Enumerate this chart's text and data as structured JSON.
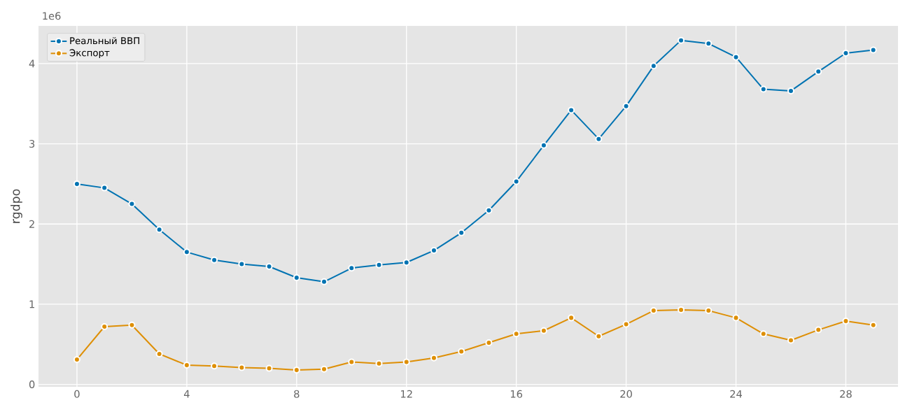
{
  "chart_data": {
    "type": "line",
    "ylabel": "rgdpo",
    "annotations": [
      "1e6"
    ],
    "x": [
      0,
      1,
      2,
      3,
      4,
      5,
      6,
      7,
      8,
      9,
      10,
      11,
      12,
      13,
      14,
      15,
      16,
      17,
      18,
      19,
      20,
      21,
      22,
      23,
      24,
      25,
      26,
      27,
      28,
      29
    ],
    "series": [
      {
        "name": "Реальный ВВП",
        "color": "#0173b2",
        "values": [
          2.5,
          2.45,
          2.25,
          1.93,
          1.65,
          1.55,
          1.5,
          1.47,
          1.33,
          1.28,
          1.45,
          1.49,
          1.52,
          1.67,
          1.89,
          2.17,
          2.53,
          2.98,
          3.42,
          3.06,
          3.47,
          3.97,
          4.29,
          4.25,
          4.08,
          3.68,
          3.66,
          3.9,
          4.13,
          4.17
        ]
      },
      {
        "name": "Экспорт",
        "color": "#de8f05",
        "values": [
          0.31,
          0.72,
          0.74,
          0.38,
          0.24,
          0.23,
          0.21,
          0.2,
          0.18,
          0.19,
          0.28,
          0.26,
          0.28,
          0.33,
          0.41,
          0.52,
          0.63,
          0.67,
          0.83,
          0.6,
          0.75,
          0.92,
          0.93,
          0.92,
          0.83,
          0.63,
          0.55,
          0.68,
          0.79,
          0.74
        ]
      }
    ],
    "xlim": [
      -1.4,
      29.9
    ],
    "ylim": [
      -0.03,
      4.47
    ],
    "xticks": [
      0,
      4,
      8,
      12,
      16,
      20,
      24,
      28
    ],
    "yticks": [
      0,
      1,
      2,
      3,
      4
    ],
    "grid": true,
    "legend": "top left",
    "marker": "circle",
    "line_style": "solid"
  }
}
